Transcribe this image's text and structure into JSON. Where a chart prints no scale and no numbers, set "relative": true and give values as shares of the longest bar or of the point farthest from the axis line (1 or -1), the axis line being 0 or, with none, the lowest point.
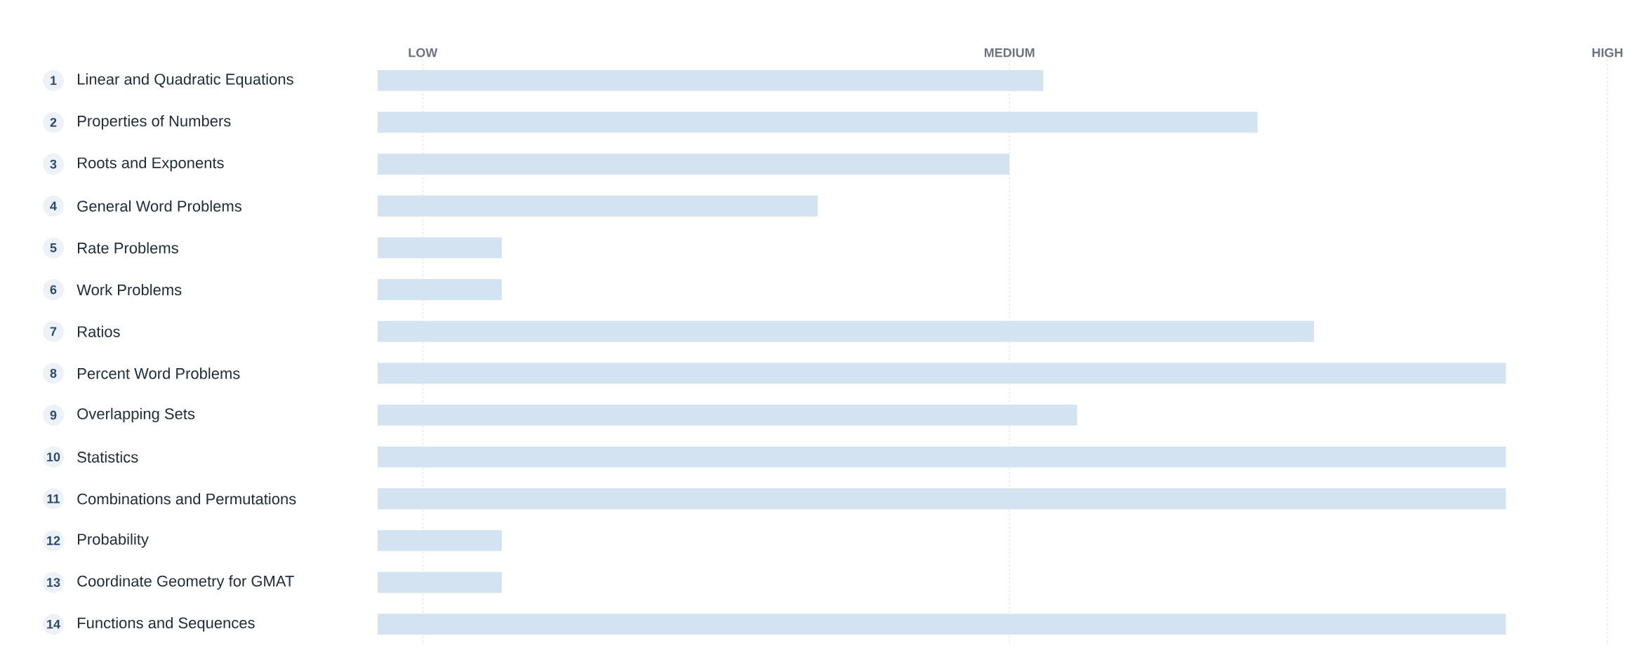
{
  "chart_data": {
    "type": "bar",
    "orientation": "horizontal",
    "relative": true,
    "categories": [
      "Linear and Quadratic Equations",
      "Properties of Numbers",
      "Roots and Exponents",
      "General Word Problems",
      "Rate Problems",
      "Work Problems",
      "Ratios",
      "Percent Word Problems",
      "Overlapping Sets",
      "Statistics",
      "Combinations and Permutations",
      "Probability",
      "Coordinate Geometry for GMAT",
      "Functions and Sequences"
    ],
    "values": [
      0.59,
      0.78,
      0.56,
      0.39,
      0.11,
      0.11,
      0.83,
      1,
      0.62,
      1,
      1,
      0.11,
      0.11,
      1
    ],
    "color": "#d4e3f1",
    "ref_lines": [
      {
        "axis": "x",
        "value": 0.04,
        "label": "LOW",
        "line_style": "dashed"
      },
      {
        "axis": "x",
        "value": 0.56,
        "label": "MEDIUM",
        "line_style": "dashed"
      },
      {
        "axis": "x",
        "value": 1.09,
        "label": "HIGH",
        "line_style": "dashed"
      }
    ],
    "annotations": [
      "1",
      "2",
      "3",
      "4",
      "5",
      "6",
      "7",
      "8",
      "9",
      "10",
      "11",
      "12",
      "13",
      "14"
    ]
  }
}
